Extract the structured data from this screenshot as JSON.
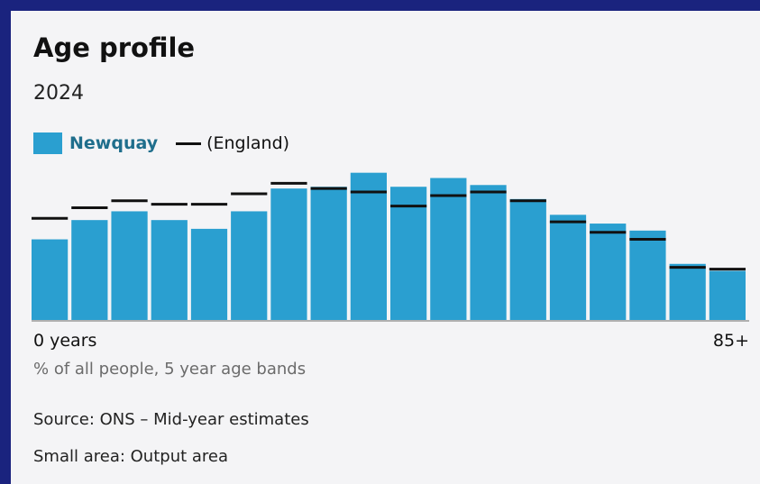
{
  "header": {
    "title": "Age profile",
    "subtitle": "2024"
  },
  "legend": {
    "series_label": "Newquay",
    "reference_label": "(England)"
  },
  "axis": {
    "first_tick": "0 years",
    "last_tick": "85+",
    "caption": "% of all people, 5 year age bands"
  },
  "footer": {
    "source": "Source: ONS – Mid-year estimates",
    "area": "Small area: Output area"
  },
  "colors": {
    "bar": "#2a9fd0",
    "legend_text": "#1f6e8c",
    "reference_line": "#111111",
    "axis": "#999999"
  },
  "chart_data": {
    "type": "bar",
    "categories": [
      "0 years",
      "",
      "",
      "",
      "",
      "",
      "",
      "",
      "",
      "",
      "",
      "",
      "",
      "",
      "",
      "",
      "",
      "85+"
    ],
    "series": [
      {
        "name": "Newquay",
        "values": [
          4.6,
          5.7,
          6.2,
          5.7,
          5.2,
          6.2,
          7.5,
          7.6,
          8.4,
          7.6,
          8.1,
          7.7,
          6.9,
          6.0,
          5.5,
          5.1,
          3.2,
          2.8
        ]
      },
      {
        "name": "(England)",
        "values": [
          5.8,
          6.4,
          6.8,
          6.6,
          6.6,
          7.2,
          7.8,
          7.5,
          7.3,
          6.5,
          7.1,
          7.3,
          6.8,
          5.6,
          5.0,
          4.6,
          3.0,
          2.9
        ]
      }
    ],
    "ylim": [
      0,
      9
    ],
    "grid": false,
    "legend": "top-left"
  }
}
